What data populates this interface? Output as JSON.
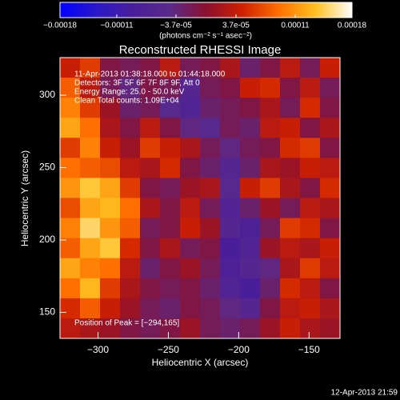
{
  "chart_data": {
    "type": "heatmap",
    "title": "Reconstructed RHESSI Image",
    "colorbar_label": "(photons cm⁻² s⁻¹ asec⁻²)",
    "zlim": [
      -0.00018,
      0.00018
    ],
    "zticks": [
      {
        "value": -0.00018,
        "label": "−0.00018"
      },
      {
        "value": -0.00011,
        "label": "−0.00011"
      },
      {
        "value": -3.7e-05,
        "label": "−3.7e-05"
      },
      {
        "value": 3.7e-05,
        "label": "3.7e-05"
      },
      0.00011,
      0.00018
    ],
    "colormap": [
      "#0000ff",
      "#2a18c8",
      "#4a1e9a",
      "#5a2a8a",
      "#8a1030",
      "#d02000",
      "#ff7000",
      "#ffc020",
      "#ffffff"
    ],
    "xlabel": "Heliocentric X (arcsec)",
    "ylabel": "Heliocentric Y (arcsec)",
    "xlim": [
      -327,
      -128
    ],
    "ylim": [
      132,
      326
    ],
    "xticks": [
      {
        "value": -300,
        "label": "−300"
      },
      {
        "value": -250,
        "label": "−250"
      },
      {
        "value": -200,
        "label": "−200"
      },
      {
        "value": -150,
        "label": "−150"
      }
    ],
    "yticks": [
      150,
      200,
      250,
      300
    ],
    "annotations": [
      "11-Apr-2013 01:38:18.000 to 01:44:18.000",
      "Detectors: 3F 5F 6F 7F 8F 9F, Att 0",
      "Energy Range: 25.0 - 50.0 keV",
      "Clean     Total counts: 1.09E+04"
    ],
    "peak_label": "Position of Peak = [−294,165]",
    "timestamp": "12-Apr-2013 21:59",
    "z": [
      [
        4e-05,
        6e-05,
        -1e-05,
        -2e-05,
        -1e-05,
        3e-05,
        -2e-05,
        -1e-05,
        2e-05,
        -3e-05,
        -1e-05,
        3e-05,
        -2e-05,
        4e-05
      ],
      [
        8e-05,
        3e-05,
        -2e-05,
        -4e-05,
        -1e-05,
        -2e-05,
        -6e-05,
        -2e-05,
        -1e-05,
        4e-05,
        5e-05,
        -1e-05,
        3e-05,
        -2e-05
      ],
      [
        0.0001,
        6e-05,
        1e-05,
        -3e-05,
        -2e-05,
        -5e-05,
        -7e-05,
        -3e-05,
        -2e-05,
        -1e-05,
        2e-05,
        -2e-05,
        5e-05,
        -1e-05
      ],
      [
        0.00012,
        9e-05,
        2e-05,
        -1e-05,
        3e-05,
        -1e-05,
        -4e-05,
        -5e-05,
        -2e-05,
        -3e-05,
        3e-05,
        4e-05,
        -1e-05,
        2e-05
      ],
      [
        6e-05,
        0.0001,
        4e-05,
        1e-05,
        6e-05,
        4e-05,
        2e-05,
        -2e-05,
        -4e-05,
        -2e-05,
        -1e-05,
        5e-05,
        6e-05,
        -1e-05
      ],
      [
        9e-05,
        8e-05,
        7e-05,
        3e-05,
        2e-05,
        5e-05,
        -1e-05,
        -3e-05,
        -6e-05,
        -3e-05,
        2e-05,
        1e-05,
        4e-05,
        3e-05
      ],
      [
        0.00011,
        0.00014,
        0.00012,
        6e-05,
        -1e-05,
        -2e-05,
        1e-05,
        2e-05,
        -5e-05,
        4e-05,
        6e-05,
        2e-05,
        -1e-05,
        5e-05
      ],
      [
        7e-05,
        0.00012,
        0.00013,
        9e-05,
        2e-05,
        -1e-05,
        3e-05,
        -2e-05,
        -7e-05,
        -3e-05,
        1e-05,
        -2e-05,
        3e-05,
        2e-05
      ],
      [
        0.0001,
        0.00015,
        0.00011,
        8e-05,
        -2e-05,
        -1e-05,
        4e-05,
        1e-05,
        -6e-05,
        -8e-05,
        -2e-05,
        6e-05,
        5e-05,
        -1e-05
      ],
      [
        8e-05,
        0.00012,
        0.00014,
        5e-05,
        -1e-05,
        2e-05,
        -2e-05,
        -1e-05,
        -9e-05,
        -7e-05,
        1e-05,
        3e-05,
        2e-05,
        4e-05
      ],
      [
        0.00012,
        0.0001,
        9e-05,
        3e-05,
        -3e-05,
        -1e-05,
        1e-05,
        -2e-05,
        -8e-05,
        -6e-05,
        -4e-05,
        2e-05,
        6e-05,
        3e-05
      ],
      [
        9e-05,
        0.00013,
        6e-05,
        2e-05,
        -1e-05,
        -2e-05,
        -1e-05,
        -3e-05,
        -7e-05,
        -9e-05,
        -3e-05,
        5e-05,
        3e-05,
        -1e-05
      ],
      [
        5e-05,
        8e-05,
        4e-05,
        1e-05,
        -2e-05,
        -3e-05,
        -1e-05,
        -2e-05,
        -4e-05,
        -6e-05,
        -1e-05,
        3e-05,
        4e-05,
        2e-05
      ],
      [
        3e-05,
        2e-05,
        1e-05,
        -1e-05,
        -2e-05,
        -1e-05,
        1e-05,
        -2e-05,
        -3e-05,
        -2e-05,
        1e-05,
        4e-05,
        2e-05,
        1e-05
      ]
    ]
  }
}
